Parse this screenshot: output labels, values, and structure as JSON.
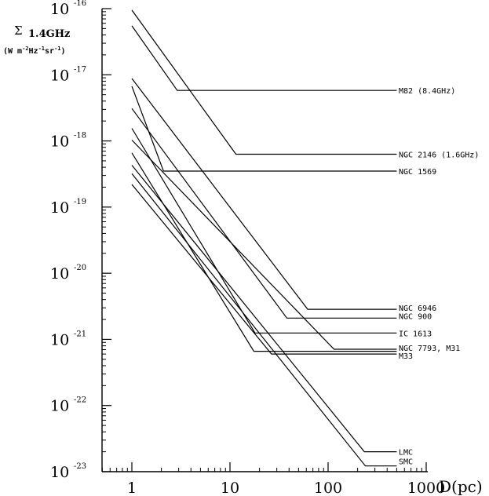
{
  "chart_data": {
    "type": "line",
    "xscale": "log",
    "yscale": "log",
    "xlim": [
      0.5,
      1000
    ],
    "ylim": [
      1e-23,
      1e-16
    ],
    "xlabel": "D(pc)",
    "ylabel_main": "Σ",
    "ylabel_sub": "1.4GHz",
    "ylabel_unit": "(W m^-2 Hz^-1 sr^-1)",
    "xticks": [
      {
        "value": 1,
        "label": "1"
      },
      {
        "value": 10,
        "label": "10"
      },
      {
        "value": 100,
        "label": "100"
      },
      {
        "value": 1000,
        "label": "1000"
      }
    ],
    "yticks": [
      {
        "value": 1e-16,
        "base": "10",
        "exp": "-16"
      },
      {
        "value": 1e-17,
        "base": "10",
        "exp": "-17"
      },
      {
        "value": 1e-18,
        "base": "10",
        "exp": "-18"
      },
      {
        "value": 1e-19,
        "base": "10",
        "exp": "-19"
      },
      {
        "value": 1e-20,
        "base": "10",
        "exp": "-20"
      },
      {
        "value": 1e-21,
        "base": "10",
        "exp": "-21"
      },
      {
        "value": 1e-22,
        "base": "10",
        "exp": "-22"
      },
      {
        "value": 1e-23,
        "base": "10",
        "exp": "-23"
      }
    ],
    "series": [
      {
        "name": "M82 (8.4GHz)",
        "x": [
          1,
          2.9,
          500
        ],
        "y": [
          5.5e-17,
          5.8e-18,
          5.8e-18
        ]
      },
      {
        "name": "NGC 2146 (1.6GHz)",
        "x": [
          1,
          11.5,
          500
        ],
        "y": [
          9.5e-17,
          6.3e-19,
          6.3e-19
        ]
      },
      {
        "name": "NGC 1569",
        "x": [
          1,
          2.1,
          500
        ],
        "y": [
          6.7e-18,
          3.5e-19,
          3.5e-19
        ]
      },
      {
        "name": "NGC 6946",
        "x": [
          1,
          62,
          500
        ],
        "y": [
          8.8e-18,
          2.85e-21,
          2.85e-21
        ]
      },
      {
        "name": "NGC 900",
        "x": [
          1,
          38,
          500
        ],
        "y": [
          3.1e-18,
          2.1e-21,
          2.1e-21
        ]
      },
      {
        "name": "IC 1613",
        "x": [
          1,
          18,
          500
        ],
        "y": [
          1.55e-18,
          1.25e-21,
          1.25e-21
        ]
      },
      {
        "name": "NGC 7793, M31",
        "x": [
          1,
          115,
          500
        ],
        "y": [
          1.03e-18,
          7.1e-22,
          7.1e-22
        ]
      },
      {
        "name": "M33",
        "x": [
          1,
          26.5,
          500
        ],
        "y": [
          2.2e-19,
          6e-22,
          6e-22
        ]
      },
      {
        "name": "",
        "x": [
          1,
          17.5,
          500
        ],
        "y": [
          6.6e-19,
          6.6e-22,
          6.6e-22
        ]
      },
      {
        "name": "LMC",
        "x": [
          1,
          234,
          500
        ],
        "y": [
          4.3e-19,
          2e-23,
          2e-23
        ]
      },
      {
        "name": "SMC",
        "x": [
          1,
          240,
          500
        ],
        "y": [
          3.2e-19,
          1.22e-23,
          1.22e-23
        ]
      }
    ]
  }
}
